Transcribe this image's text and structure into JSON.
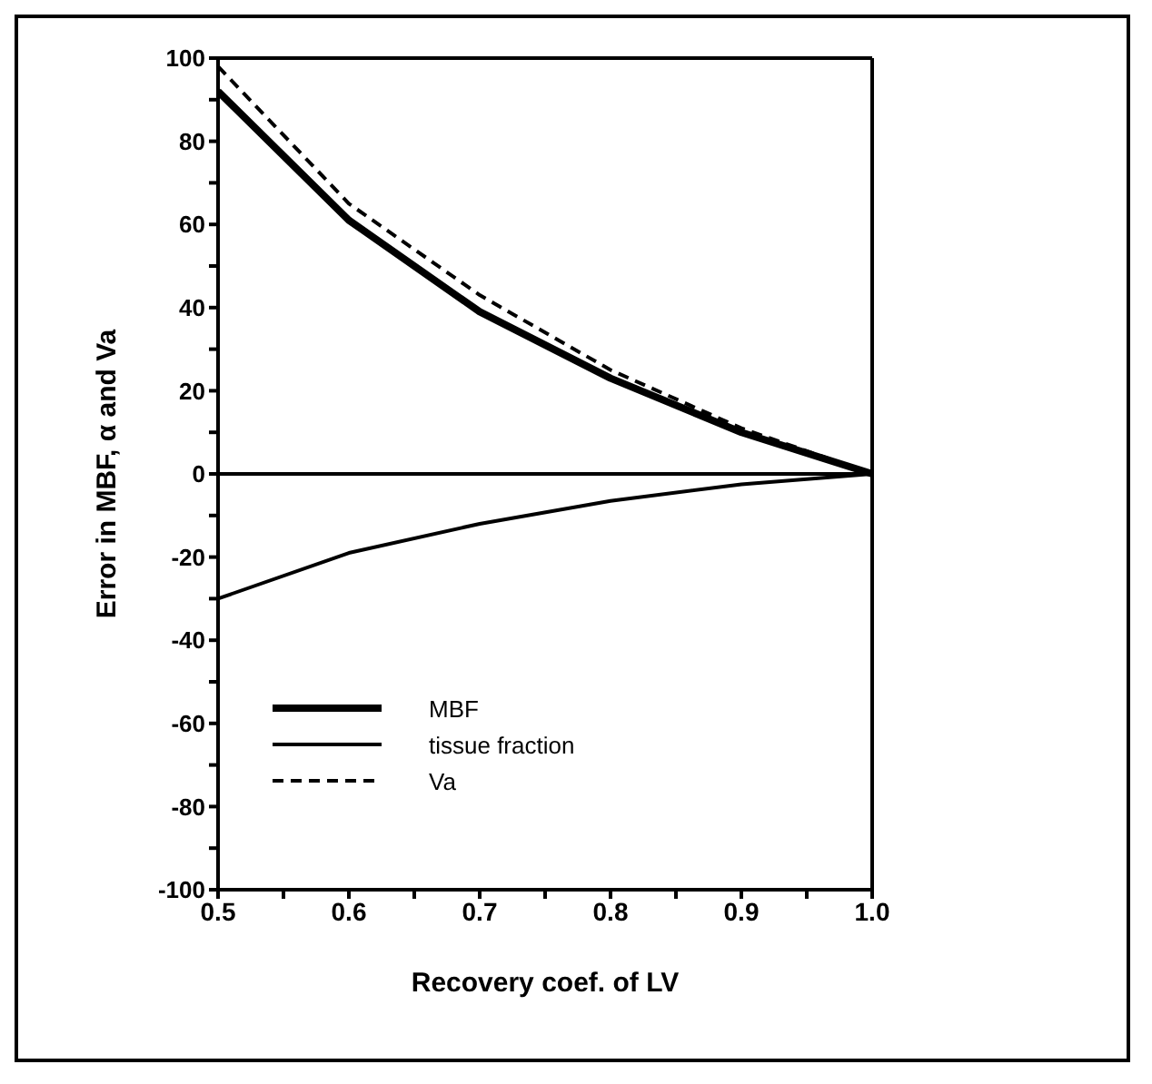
{
  "chart_data": {
    "type": "line",
    "xlabel": "Recovery coef. of LV",
    "ylabel": "Error in MBF,   α and Va",
    "x": [
      0.5,
      0.6,
      0.7,
      0.8,
      0.9,
      1.0
    ],
    "series": [
      {
        "name": "MBF",
        "color": "#000000",
        "line_style": "solid",
        "values": [
          92,
          61,
          39,
          23,
          10,
          0
        ]
      },
      {
        "name": "tissue fraction",
        "color": "#000000",
        "line_style": "solid",
        "values": [
          -30,
          -19,
          -12,
          -6.5,
          -2.5,
          0
        ]
      },
      {
        "name": "Va",
        "color": "#000000",
        "line_style": "dashed",
        "values": [
          98,
          65,
          43,
          25,
          11,
          0
        ]
      }
    ],
    "xlim": [
      0.5,
      1.0
    ],
    "xticks": [
      {
        "value": 0.5,
        "label": "0.5"
      },
      {
        "value": 0.55,
        "label": null
      },
      {
        "value": 0.6,
        "label": "0.6"
      },
      {
        "value": 0.65,
        "label": null
      },
      {
        "value": 0.7,
        "label": "0.7"
      },
      {
        "value": 0.75,
        "label": null
      },
      {
        "value": 0.8,
        "label": "0.8"
      },
      {
        "value": 0.85,
        "label": null
      },
      {
        "value": 0.9,
        "label": "0.9"
      },
      {
        "value": 0.95,
        "label": null
      },
      {
        "value": 1.0,
        "label": "1.0"
      }
    ],
    "ylim": [
      -100,
      100
    ],
    "yticks": [
      -100,
      {
        "value": -90,
        "label": null
      },
      -80,
      {
        "value": -70,
        "label": null
      },
      -60,
      {
        "value": -50,
        "label": null
      },
      -40,
      {
        "value": -30,
        "label": null
      },
      -20,
      {
        "value": -10,
        "label": null
      },
      0,
      {
        "value": 10,
        "label": null
      },
      20,
      {
        "value": 30,
        "label": null
      },
      40,
      {
        "value": 50,
        "label": null
      },
      60,
      {
        "value": 70,
        "label": null
      },
      80,
      {
        "value": 90,
        "label": null
      },
      100
    ],
    "ref_lines": [
      {
        "axis": "y",
        "value": 0,
        "color": "#000000"
      }
    ],
    "legend": "bottom left",
    "marker": "none",
    "grid": false
  }
}
